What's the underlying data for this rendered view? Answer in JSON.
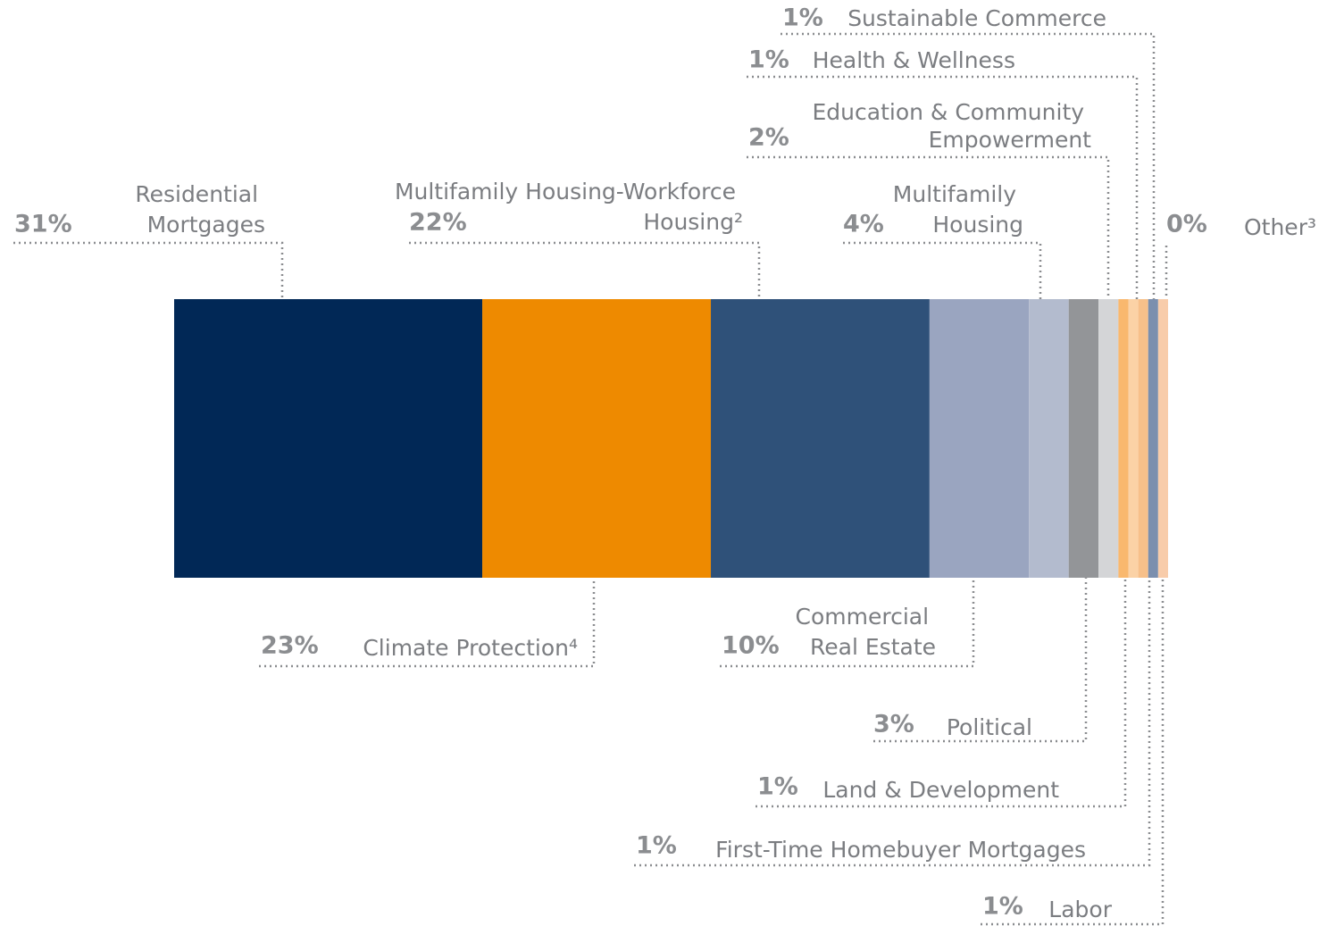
{
  "chart_data": {
    "type": "stacked_bar",
    "xlim": [
      0,
      100
    ],
    "series": [
      {
        "name": "Residential Mortgages",
        "color": "#012856",
        "values": [
          31
        ],
        "value_labels": [
          "31%"
        ]
      },
      {
        "name": "Climate Protection⁴",
        "color": "#ee8a00",
        "values": [
          23
        ],
        "value_labels": [
          "23%"
        ]
      },
      {
        "name": "Multifamily Housing-Workforce Housing²",
        "color": "#2f5179",
        "values": [
          22
        ],
        "value_labels": [
          "22%"
        ]
      },
      {
        "name": "Commercial Real Estate",
        "color": "#9aa5c0",
        "values": [
          10
        ],
        "value_labels": [
          "10%"
        ]
      },
      {
        "name": "Multifamily Housing",
        "color": "#b3bbce",
        "values": [
          4
        ],
        "value_labels": [
          "4%"
        ]
      },
      {
        "name": "Political",
        "color": "#939598",
        "values": [
          3
        ],
        "value_labels": [
          "3%"
        ]
      },
      {
        "name": "Education & Community Empowerment",
        "color": "#d4d5d7",
        "values": [
          2
        ],
        "value_labels": [
          "2%"
        ]
      },
      {
        "name": "Land & Development",
        "color": "#f9b86e",
        "values": [
          1
        ],
        "value_labels": [
          "1%"
        ]
      },
      {
        "name": "Health & Wellness",
        "color": "#fbd2a6",
        "values": [
          1
        ],
        "value_labels": [
          "1%"
        ]
      },
      {
        "name": "First-Time Homebuyer Mortgages",
        "color": "#f7c08a",
        "values": [
          1
        ],
        "value_labels": [
          "1%"
        ]
      },
      {
        "name": "Sustainable Commerce",
        "color": "#7b8fae",
        "values": [
          1
        ],
        "value_labels": [
          "1%"
        ]
      },
      {
        "name": "Labor",
        "color": "#f8ccaa",
        "values": [
          1
        ],
        "value_labels": [
          "1%"
        ]
      },
      {
        "name": "Other³",
        "color": "#29a8e0",
        "values": [
          0
        ],
        "value_labels": [
          "0%"
        ]
      }
    ]
  }
}
